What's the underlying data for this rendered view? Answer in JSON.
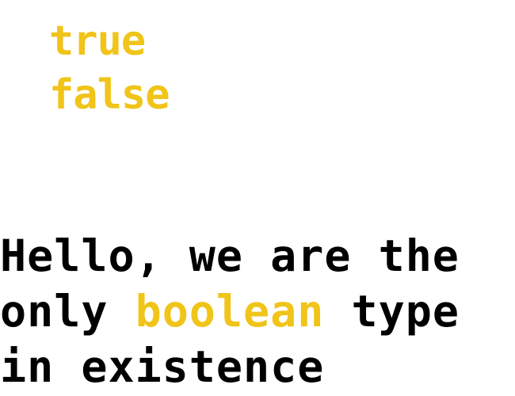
{
  "values": [
    "true",
    "false"
  ],
  "message": {
    "line1": "Hello, we are the",
    "line2_before": "only ",
    "line2_highlight": "boolean",
    "line2_after": " type",
    "line3": "in existence"
  },
  "colors": {
    "highlight": "#f0c419",
    "text": "#000000",
    "background": "#ffffff"
  }
}
